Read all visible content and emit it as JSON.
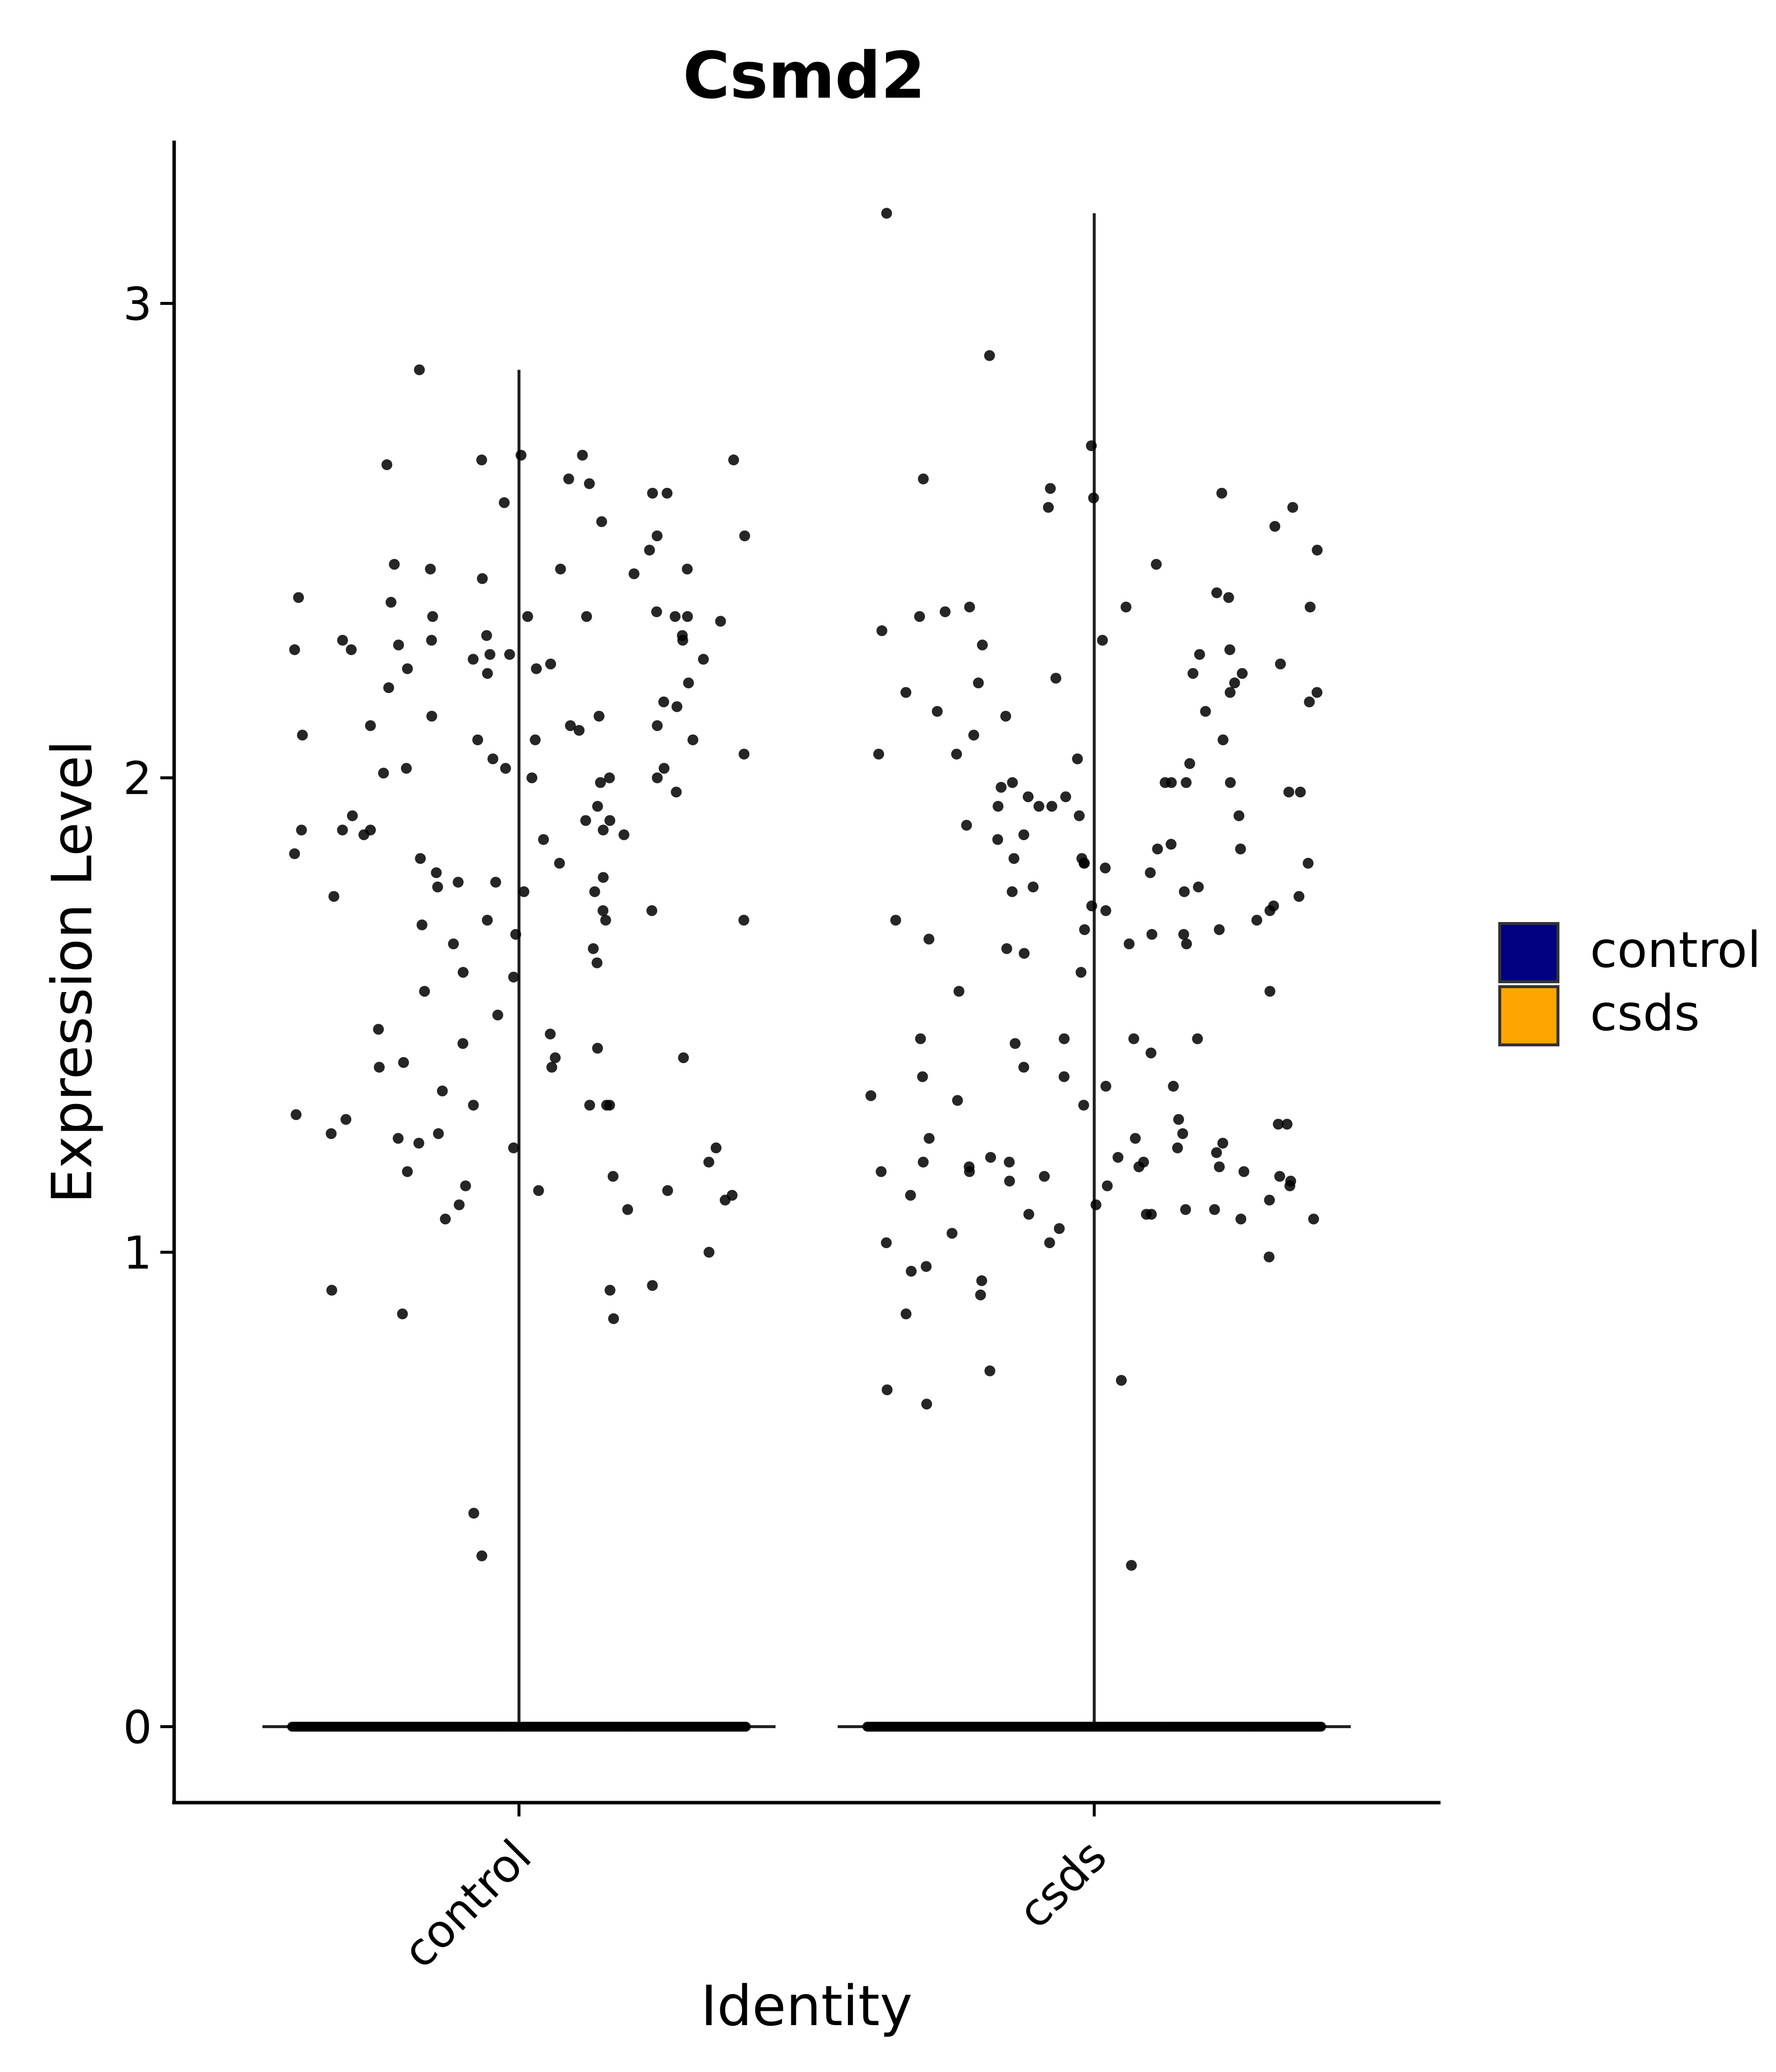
{
  "chart_data": {
    "type": "scatter",
    "subtype": "violin-with-jitter",
    "title": "Csmd2",
    "xlabel": "Identity",
    "ylabel": "Expression Level",
    "categories": [
      "control",
      "csds"
    ],
    "yticks": [
      0,
      1,
      2,
      3
    ],
    "ylim": [
      -0.16,
      3.35
    ],
    "grid": false,
    "legend": {
      "position": "right",
      "entries": [
        {
          "name": "control",
          "color": "#000080"
        },
        {
          "name": "csds",
          "color": "#FFA500"
        }
      ]
    },
    "point_color": "#000000",
    "series": [
      {
        "name": "control",
        "max": 2.86,
        "zero_count": 400,
        "values": [
          2.62,
          2.44,
          2.1,
          2.05,
          1.99,
          1.94,
          2.11,
          2.08,
          1.16,
          1.13,
          1.09,
          1.07,
          0.93,
          1.39,
          1.41,
          1.24,
          2.66,
          2.48,
          2.34,
          2.34,
          2.29,
          2.02,
          1.88,
          1.78,
          1.23,
          1.1,
          1.0,
          2.44,
          2.42,
          2.3,
          2.02,
          1.89,
          1.88,
          1.8,
          1.59,
          2.68,
          2.67,
          2.58,
          2.43,
          2.45,
          2.26,
          2.2,
          2.16,
          2.13,
          2.08,
          1.97,
          1.91,
          1.89,
          1.82,
          1.75,
          1.7,
          1.31,
          1.31,
          1.17,
          1.14,
          0.45,
          0.36,
          2.33,
          2.22,
          2.09,
          2.02,
          1.92,
          1.76,
          1.84,
          1.69,
          2.86,
          2.67,
          2.37,
          2.35,
          2.26,
          2.23,
          2.15,
          2.11,
          2.0,
          1.89,
          1.87,
          1.78,
          1.76,
          1.64,
          1.55,
          1.22,
          1.11,
          2.01,
          2.34,
          2.25,
          2.63,
          2.38,
          2.68,
          2.34,
          2.25,
          2.0,
          1.89,
          1.83,
          1.72,
          1.7,
          1.67,
          1.47,
          1.46,
          1.43,
          1.41,
          1.39,
          1.31,
          1.25,
          1.22,
          0.92,
          0.87,
          1.5,
          2.51,
          2.34,
          2.29,
          2.28,
          2.11,
          2.08,
          1.7,
          1.29,
          1.25,
          0.86,
          2.6,
          2.6,
          2.51,
          2.44,
          2.3,
          2.29,
          2.27,
          2.23,
          2.0,
          1.91,
          1.79,
          1.61,
          1.58,
          1.31,
          1.19,
          2.54,
          2.27,
          2.24,
          2.19,
          2.13,
          2.04,
          1.77,
          1.72,
          1.65,
          1.44,
          1.4,
          1.34,
          1.28,
          1.13,
          1.12,
          0.92
        ]
      },
      {
        "name": "csds",
        "max": 3.19,
        "zero_count": 400,
        "values": [
          2.29,
          2.22,
          1.99,
          1.99,
          1.82,
          1.68,
          1.66,
          1.55,
          1.39,
          1.33,
          1.19,
          1.16,
          0.96,
          0.68,
          1.37,
          2.63,
          2.39,
          2.03,
          1.99,
          1.96,
          1.9,
          1.59,
          1.27,
          1.15,
          1.12,
          1.11,
          1.08,
          1.07,
          1.17,
          0.91,
          0.34,
          2.16,
          2.28,
          2.26,
          2.13,
          1.92,
          1.87,
          1.81,
          1.45,
          1.35,
          1.25,
          1.22,
          1.2,
          1.24,
          1.21,
          1.17,
          0.97,
          2.7,
          2.04,
          1.77,
          1.76,
          1.67,
          1.65,
          1.63,
          1.45,
          1.37,
          1.24,
          1.19,
          1.15,
          1.14,
          1.08,
          1.02,
          0.99,
          0.75,
          3.19,
          2.61,
          2.57,
          2.57,
          2.36,
          2.31,
          2.21,
          1.94,
          2.35,
          2.53,
          1.98,
          1.97,
          2.22,
          2.18,
          2.08,
          1.92,
          1.86,
          1.73,
          1.64,
          1.23,
          1.18,
          1.08,
          0.73,
          0.87,
          2.24,
          2.14,
          2.05,
          1.99,
          1.94,
          1.85,
          1.77,
          1.75,
          1.72,
          1.72,
          1.55,
          1.19,
          1.18,
          1.16,
          2.27,
          2.89,
          1.83,
          1.7,
          1.68,
          1.67,
          1.65,
          1.32,
          1.17,
          1.07,
          1.09,
          2.36,
          2.14,
          2.18,
          2.2,
          1.88,
          1.82,
          1.73,
          1.7,
          1.44,
          1.42,
          1.27,
          1.04,
          1.02,
          0.94,
          2.6,
          2.59,
          2.45,
          2.36,
          2.34,
          2.2,
          1.96,
          1.85,
          1.8,
          1.76,
          1.45,
          1.45,
          1.2,
          1.18,
          1.05,
          0.71,
          2.48,
          2.38,
          2.18,
          2.09,
          2.05,
          1.99,
          1.97,
          1.94,
          1.83,
          1.82,
          1.35,
          1.31,
          1.28,
          1.14,
          1.1,
          1.09
        ]
      }
    ]
  }
}
